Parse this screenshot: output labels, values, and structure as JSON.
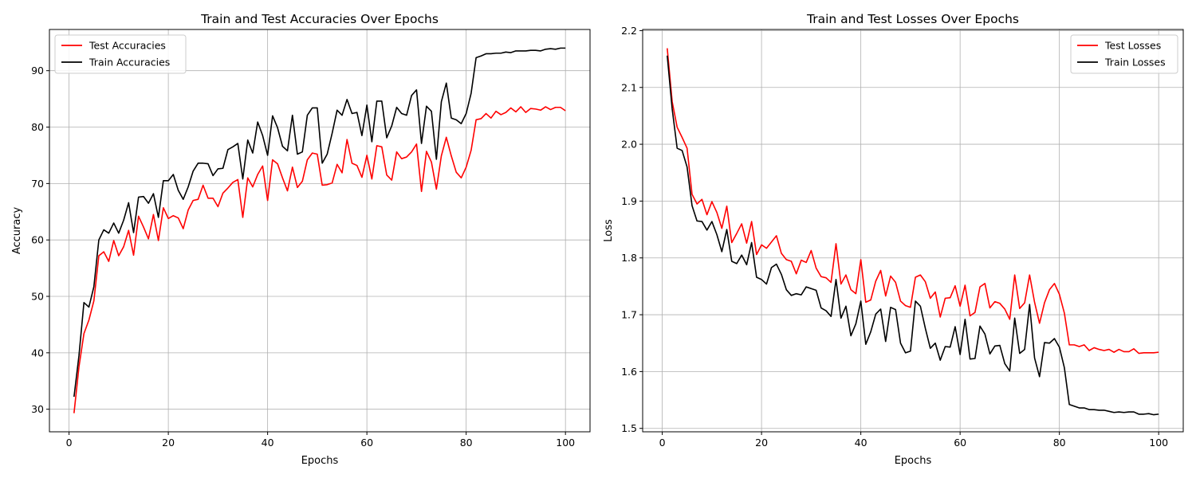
{
  "chart_data": [
    {
      "type": "line",
      "title": "Train and Test Accuracies Over Epochs",
      "xlabel": "Epochs",
      "ylabel": "Accuracy",
      "xlim": [
        -3.95,
        104.95
      ],
      "ylim": [
        26.0,
        97.3
      ],
      "xticks": [
        0,
        20,
        40,
        60,
        80,
        100
      ],
      "yticks": [
        30,
        40,
        50,
        60,
        70,
        80,
        90
      ],
      "xtick_labels": [
        "0",
        "20",
        "40",
        "60",
        "80",
        "100"
      ],
      "ytick_labels": [
        "30",
        "40",
        "50",
        "60",
        "70",
        "80",
        "90"
      ],
      "grid": true,
      "legend_position": "upper left",
      "series": [
        {
          "name": "Test Accuracies",
          "color": "#ff0000",
          "x": [
            1,
            2,
            3,
            4,
            5,
            6,
            7,
            8,
            9,
            10,
            11,
            12,
            13,
            14,
            15,
            16,
            17,
            18,
            19,
            20,
            21,
            22,
            23,
            24,
            25,
            26,
            27,
            28,
            29,
            30,
            31,
            32,
            33,
            34,
            35,
            36,
            37,
            38,
            39,
            40,
            41,
            42,
            43,
            44,
            45,
            46,
            47,
            48,
            49,
            50,
            51,
            52,
            53,
            54,
            55,
            56,
            57,
            58,
            59,
            60,
            61,
            62,
            63,
            64,
            65,
            66,
            67,
            68,
            69,
            70,
            71,
            72,
            73,
            74,
            75,
            76,
            77,
            78,
            79,
            80,
            81,
            82,
            83,
            84,
            85,
            86,
            87,
            88,
            89,
            90,
            91,
            92,
            93,
            94,
            95,
            96,
            97,
            98,
            99,
            100
          ],
          "values": [
            29.3,
            37.5,
            43.4,
            45.8,
            49.2,
            57.2,
            57.9,
            56.2,
            59.9,
            57.2,
            58.8,
            61.7,
            57.3,
            64.2,
            62.3,
            60.2,
            64.5,
            59.9,
            65.7,
            63.8,
            64.3,
            63.9,
            62.0,
            65.3,
            67.0,
            67.2,
            69.7,
            67.4,
            67.4,
            65.9,
            68.3,
            69.2,
            70.2,
            70.7,
            64.0,
            71.0,
            69.4,
            71.6,
            73.1,
            67.0,
            74.2,
            73.5,
            71.0,
            68.7,
            72.9,
            69.3,
            70.4,
            74.2,
            75.4,
            75.2,
            69.7,
            69.8,
            70.1,
            73.4,
            71.9,
            77.8,
            73.6,
            73.2,
            71.1,
            75.0,
            70.8,
            76.7,
            76.5,
            71.5,
            70.6,
            75.6,
            74.4,
            74.7,
            75.6,
            77.0,
            68.6,
            75.7,
            73.8,
            69.0,
            74.9,
            78.2,
            74.9,
            72.0,
            71.0,
            72.9,
            75.9,
            81.3,
            81.5,
            82.4,
            81.6,
            82.8,
            82.2,
            82.6,
            83.4,
            82.7,
            83.6,
            82.6,
            83.3,
            83.2,
            83.0,
            83.6,
            83.1,
            83.5,
            83.5,
            82.9
          ]
        },
        {
          "name": "Train Accuracies",
          "color": "#000000",
          "x": [
            1,
            2,
            3,
            4,
            5,
            6,
            7,
            8,
            9,
            10,
            11,
            12,
            13,
            14,
            15,
            16,
            17,
            18,
            19,
            20,
            21,
            22,
            23,
            24,
            25,
            26,
            27,
            28,
            29,
            30,
            31,
            32,
            33,
            34,
            35,
            36,
            37,
            38,
            39,
            40,
            41,
            42,
            43,
            44,
            45,
            46,
            47,
            48,
            49,
            50,
            51,
            52,
            53,
            54,
            55,
            56,
            57,
            58,
            59,
            60,
            61,
            62,
            63,
            64,
            65,
            66,
            67,
            68,
            69,
            70,
            71,
            72,
            73,
            74,
            75,
            76,
            77,
            78,
            79,
            80,
            81,
            82,
            83,
            84,
            85,
            86,
            87,
            88,
            89,
            90,
            91,
            92,
            93,
            94,
            95,
            96,
            97,
            98,
            99,
            100
          ],
          "values": [
            32.2,
            39.5,
            48.9,
            48.1,
            51.7,
            60.0,
            61.8,
            61.2,
            63.0,
            61.2,
            63.5,
            66.6,
            61.3,
            67.6,
            67.7,
            66.5,
            68.2,
            64.0,
            70.5,
            70.5,
            71.6,
            68.8,
            67.2,
            69.4,
            72.2,
            73.6,
            73.6,
            73.5,
            71.4,
            72.6,
            72.7,
            76.0,
            76.5,
            77.1,
            70.8,
            77.7,
            75.4,
            80.9,
            78.5,
            75.0,
            82.0,
            79.9,
            76.6,
            75.8,
            82.1,
            75.2,
            75.6,
            82.1,
            83.4,
            83.4,
            73.6,
            75.2,
            78.9,
            83.0,
            82.1,
            84.9,
            82.4,
            82.6,
            78.5,
            83.9,
            77.4,
            84.6,
            84.6,
            78.1,
            80.2,
            83.5,
            82.4,
            82.1,
            85.6,
            86.6,
            77.1,
            83.7,
            82.8,
            74.3,
            84.5,
            87.8,
            81.6,
            81.3,
            80.6,
            82.4,
            86.0,
            92.3,
            92.6,
            93.0,
            93.0,
            93.1,
            93.1,
            93.3,
            93.2,
            93.5,
            93.5,
            93.5,
            93.6,
            93.6,
            93.5,
            93.8,
            93.9,
            93.8,
            94.0,
            94.0
          ]
        }
      ]
    },
    {
      "type": "line",
      "title": "Train and Test Losses Over Epochs",
      "xlabel": "Epochs",
      "ylabel": "Loss",
      "xlim": [
        -3.95,
        104.95
      ],
      "ylim": [
        1.494,
        2.202
      ],
      "xticks": [
        0,
        20,
        40,
        60,
        80,
        100
      ],
      "yticks": [
        1.5,
        1.6,
        1.7,
        1.8,
        1.9,
        2.0,
        2.1,
        2.2
      ],
      "xtick_labels": [
        "0",
        "20",
        "40",
        "60",
        "80",
        "100"
      ],
      "ytick_labels": [
        "1.5",
        "1.6",
        "1.7",
        "1.8",
        "1.9",
        "2.0",
        "2.1",
        "2.2"
      ],
      "grid": true,
      "legend_position": "upper right",
      "series": [
        {
          "name": "Test Losses",
          "color": "#ff0000",
          "x": [
            1,
            2,
            3,
            4,
            5,
            6,
            7,
            8,
            9,
            10,
            11,
            12,
            13,
            14,
            15,
            16,
            17,
            18,
            19,
            20,
            21,
            22,
            23,
            24,
            25,
            26,
            27,
            28,
            29,
            30,
            31,
            32,
            33,
            34,
            35,
            36,
            37,
            38,
            39,
            40,
            41,
            42,
            43,
            44,
            45,
            46,
            47,
            48,
            49,
            50,
            51,
            52,
            53,
            54,
            55,
            56,
            57,
            58,
            59,
            60,
            61,
            62,
            63,
            64,
            65,
            66,
            67,
            68,
            69,
            70,
            71,
            72,
            73,
            74,
            75,
            76,
            77,
            78,
            79,
            80,
            81,
            82,
            83,
            84,
            85,
            86,
            87,
            88,
            89,
            90,
            91,
            92,
            93,
            94,
            95,
            96,
            97,
            98,
            99,
            100
          ],
          "values": [
            2.169,
            2.075,
            2.03,
            2.012,
            1.993,
            1.912,
            1.895,
            1.903,
            1.876,
            1.899,
            1.88,
            1.852,
            1.891,
            1.827,
            1.843,
            1.86,
            1.826,
            1.864,
            1.806,
            1.823,
            1.817,
            1.828,
            1.839,
            1.808,
            1.797,
            1.794,
            1.772,
            1.796,
            1.792,
            1.813,
            1.782,
            1.767,
            1.765,
            1.757,
            1.825,
            1.754,
            1.77,
            1.744,
            1.737,
            1.797,
            1.722,
            1.726,
            1.759,
            1.778,
            1.733,
            1.768,
            1.757,
            1.724,
            1.716,
            1.713,
            1.766,
            1.77,
            1.758,
            1.729,
            1.74,
            1.696,
            1.729,
            1.73,
            1.751,
            1.715,
            1.752,
            1.698,
            1.704,
            1.749,
            1.755,
            1.712,
            1.723,
            1.72,
            1.71,
            1.692,
            1.77,
            1.711,
            1.721,
            1.77,
            1.722,
            1.685,
            1.721,
            1.744,
            1.755,
            1.736,
            1.703,
            1.647,
            1.647,
            1.644,
            1.647,
            1.637,
            1.642,
            1.639,
            1.637,
            1.639,
            1.634,
            1.639,
            1.635,
            1.635,
            1.64,
            1.632,
            1.633,
            1.633,
            1.633,
            1.634
          ]
        },
        {
          "name": "Train Losses",
          "color": "#000000",
          "x": [
            1,
            2,
            3,
            4,
            5,
            6,
            7,
            8,
            9,
            10,
            11,
            12,
            13,
            14,
            15,
            16,
            17,
            18,
            19,
            20,
            21,
            22,
            23,
            24,
            25,
            26,
            27,
            28,
            29,
            30,
            31,
            32,
            33,
            34,
            35,
            36,
            37,
            38,
            39,
            40,
            41,
            42,
            43,
            44,
            45,
            46,
            47,
            48,
            49,
            50,
            51,
            52,
            53,
            54,
            55,
            56,
            57,
            58,
            59,
            60,
            61,
            62,
            63,
            64,
            65,
            66,
            67,
            68,
            69,
            70,
            71,
            72,
            73,
            74,
            75,
            76,
            77,
            78,
            79,
            80,
            81,
            82,
            83,
            84,
            85,
            86,
            87,
            88,
            89,
            90,
            91,
            92,
            93,
            94,
            95,
            96,
            97,
            98,
            99,
            100
          ],
          "values": [
            2.156,
            2.062,
            1.993,
            1.989,
            1.96,
            1.892,
            1.865,
            1.864,
            1.849,
            1.864,
            1.841,
            1.811,
            1.85,
            1.794,
            1.79,
            1.805,
            1.788,
            1.827,
            1.766,
            1.762,
            1.754,
            1.783,
            1.789,
            1.771,
            1.744,
            1.734,
            1.737,
            1.735,
            1.749,
            1.746,
            1.743,
            1.712,
            1.707,
            1.697,
            1.762,
            1.694,
            1.715,
            1.663,
            1.684,
            1.724,
            1.648,
            1.67,
            1.701,
            1.71,
            1.653,
            1.713,
            1.709,
            1.65,
            1.633,
            1.636,
            1.724,
            1.715,
            1.676,
            1.641,
            1.65,
            1.62,
            1.644,
            1.643,
            1.679,
            1.63,
            1.692,
            1.622,
            1.623,
            1.68,
            1.666,
            1.631,
            1.645,
            1.646,
            1.614,
            1.601,
            1.694,
            1.632,
            1.639,
            1.718,
            1.624,
            1.591,
            1.651,
            1.65,
            1.658,
            1.643,
            1.607,
            1.542,
            1.539,
            1.536,
            1.536,
            1.533,
            1.533,
            1.532,
            1.532,
            1.53,
            1.528,
            1.529,
            1.528,
            1.529,
            1.529,
            1.525,
            1.525,
            1.526,
            1.524,
            1.525
          ]
        }
      ]
    }
  ]
}
